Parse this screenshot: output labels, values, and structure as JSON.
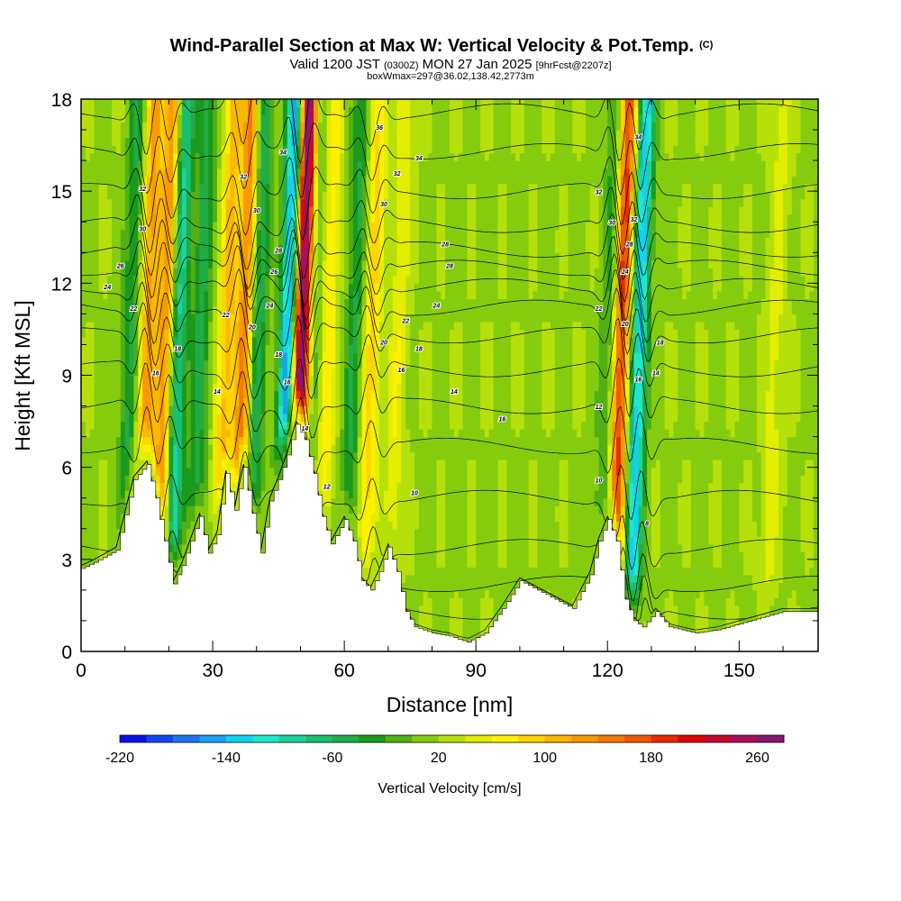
{
  "header": {
    "title": "Wind-Parallel Section at Max W: Vertical Velocity & Pot.Temp.",
    "title_mark": "(C)",
    "valid_prefix": "Valid 1200 JST",
    "valid_utc": "(0300Z)",
    "valid_date": "MON 27 Jan 2025",
    "forecast": "[9hrFcst@2207z]",
    "box_info": "boxWmax=297@36.02,138.42,2773m"
  },
  "chart_data": {
    "type": "heatmap",
    "title": "Wind-Parallel Section at Max W: Vertical Velocity & Pot.Temp.",
    "xlabel": "Distance [nm]",
    "ylabel": "Height [Kft MSL]",
    "xlim": [
      0,
      168
    ],
    "ylim": [
      0,
      18
    ],
    "x_ticks": [
      0,
      30,
      60,
      90,
      120,
      150
    ],
    "y_ticks": [
      0,
      3,
      6,
      9,
      12,
      15,
      18
    ],
    "grid": false,
    "colorbar": {
      "label": "Vertical Velocity [cm/s]",
      "min": -220,
      "max": 280,
      "step": 20,
      "tick_values": [
        -220,
        -140,
        -60,
        20,
        100,
        180,
        260
      ],
      "colors": [
        "#0a10e6",
        "#1746f0",
        "#1f74f2",
        "#18a2f5",
        "#12d2ee",
        "#1ee8c8",
        "#1cd39c",
        "#18bf6e",
        "#22ac45",
        "#1a9a1c",
        "#52b014",
        "#85cc0e",
        "#b6e00a",
        "#e2ed00",
        "#fff000",
        "#ffd400",
        "#fab800",
        "#f89a00",
        "#f57a00",
        "#f05800",
        "#ea2a00",
        "#e60000",
        "#c80a2a",
        "#a8105a",
        "#861870"
      ]
    },
    "wind_series": {
      "name": "Vertical Velocity",
      "units": "cm/s",
      "max_value": 297,
      "updrafts": [
        {
          "x": 15,
          "w": 110
        },
        {
          "x": 19,
          "w": 120
        },
        {
          "x": 33,
          "w": 90
        },
        {
          "x": 37,
          "w": 130
        },
        {
          "x": 50,
          "w": 280
        },
        {
          "x": 56,
          "w": 60
        },
        {
          "x": 66,
          "w": 70
        },
        {
          "x": 72,
          "w": 40
        },
        {
          "x": 123,
          "w": 170
        },
        {
          "x": 158,
          "w": 30
        }
      ],
      "downdrafts": [
        {
          "x": 11,
          "w": -60
        },
        {
          "x": 22,
          "w": -110
        },
        {
          "x": 27,
          "w": -70
        },
        {
          "x": 40,
          "w": -80
        },
        {
          "x": 47,
          "w": -180
        },
        {
          "x": 53,
          "w": -40
        },
        {
          "x": 62,
          "w": -60
        },
        {
          "x": 127,
          "w": -150
        },
        {
          "x": 120,
          "w": -50
        }
      ]
    },
    "terrain_series": {
      "name": "Terrain",
      "units": "Kft",
      "x": [
        0,
        3,
        8,
        12,
        15,
        17,
        19,
        21,
        23,
        25,
        27,
        29,
        31,
        33,
        35,
        37,
        39,
        41,
        43,
        45,
        47,
        49,
        51,
        53,
        55,
        57,
        60,
        62,
        64,
        66,
        68,
        70,
        72,
        74,
        76,
        80,
        84,
        88,
        92,
        96,
        100,
        104,
        108,
        112,
        116,
        118,
        120,
        122,
        124,
        126,
        128,
        131,
        134,
        137,
        140,
        145,
        150,
        155,
        160,
        168
      ],
      "y": [
        2.7,
        2.9,
        3.3,
        5.6,
        6.1,
        5.0,
        3.6,
        2.2,
        2.8,
        3.6,
        4.4,
        3.2,
        3.8,
        5.8,
        4.6,
        6.0,
        4.5,
        3.2,
        4.9,
        5.6,
        6.4,
        7.4,
        6.9,
        5.8,
        4.4,
        3.5,
        4.3,
        3.6,
        2.3,
        2.0,
        2.6,
        3.4,
        2.6,
        1.3,
        0.8,
        0.6,
        0.5,
        0.3,
        0.6,
        1.4,
        2.3,
        2.0,
        1.7,
        1.4,
        2.5,
        3.6,
        4.3,
        3.6,
        1.7,
        1.0,
        0.8,
        1.3,
        0.8,
        0.7,
        0.6,
        0.7,
        0.9,
        1.1,
        1.3,
        1.3
      ]
    },
    "theta_series": {
      "name": "Pot.Temp.",
      "units": "C",
      "base_levels": [
        {
          "t": 4,
          "y": 0.5
        },
        {
          "t": 6,
          "y": 1.3
        },
        {
          "t": 8,
          "y": 2.2
        },
        {
          "t": 10,
          "y": 3.4
        },
        {
          "t": 12,
          "y": 5.0
        },
        {
          "t": 14,
          "y": 6.7
        },
        {
          "t": 16,
          "y": 8.0
        },
        {
          "t": 18,
          "y": 9.2
        },
        {
          "t": 20,
          "y": 10.3
        },
        {
          "t": 22,
          "y": 11.2
        },
        {
          "t": 24,
          "y": 11.9
        },
        {
          "t": 26,
          "y": 12.5
        },
        {
          "t": 28,
          "y": 13.1
        },
        {
          "t": 30,
          "y": 13.9
        },
        {
          "t": 32,
          "y": 15.0
        },
        {
          "t": 34,
          "y": 16.3
        },
        {
          "t": 36,
          "y": 17.6
        }
      ],
      "labels": [
        {
          "x": 96,
          "y": 7.5,
          "text": "16"
        },
        {
          "x": 85,
          "y": 8.4,
          "text": "14"
        },
        {
          "x": 81,
          "y": 11.2,
          "text": "24"
        },
        {
          "x": 84,
          "y": 12.5,
          "text": "28"
        },
        {
          "x": 83,
          "y": 13.2,
          "text": "28"
        },
        {
          "x": 77,
          "y": 16.0,
          "text": "34"
        },
        {
          "x": 68,
          "y": 17.0,
          "text": "36"
        },
        {
          "x": 72,
          "y": 15.5,
          "text": "32"
        },
        {
          "x": 69,
          "y": 14.5,
          "text": "30"
        },
        {
          "x": 74,
          "y": 10.7,
          "text": "22"
        },
        {
          "x": 69,
          "y": 10.0,
          "text": "20"
        },
        {
          "x": 77,
          "y": 9.8,
          "text": "18"
        },
        {
          "x": 73,
          "y": 9.1,
          "text": "16"
        },
        {
          "x": 76,
          "y": 5.1,
          "text": "10"
        },
        {
          "x": 56,
          "y": 5.3,
          "text": "12"
        },
        {
          "x": 51,
          "y": 7.2,
          "text": "14"
        },
        {
          "x": 47,
          "y": 8.7,
          "text": "16"
        },
        {
          "x": 45,
          "y": 9.6,
          "text": "18"
        },
        {
          "x": 39,
          "y": 10.5,
          "text": "20"
        },
        {
          "x": 43,
          "y": 11.2,
          "text": "24"
        },
        {
          "x": 44,
          "y": 12.3,
          "text": "26"
        },
        {
          "x": 45,
          "y": 13.0,
          "text": "28"
        },
        {
          "x": 40,
          "y": 14.3,
          "text": "30"
        },
        {
          "x": 37,
          "y": 15.4,
          "text": "32"
        },
        {
          "x": 46,
          "y": 16.2,
          "text": "34"
        },
        {
          "x": 33,
          "y": 10.9,
          "text": "22"
        },
        {
          "x": 31,
          "y": 8.4,
          "text": "14"
        },
        {
          "x": 22,
          "y": 9.8,
          "text": "18"
        },
        {
          "x": 17,
          "y": 9.0,
          "text": "16"
        },
        {
          "x": 12,
          "y": 11.1,
          "text": "22"
        },
        {
          "x": 6,
          "y": 11.8,
          "text": "24"
        },
        {
          "x": 9,
          "y": 12.5,
          "text": "26"
        },
        {
          "x": 14,
          "y": 13.7,
          "text": "30"
        },
        {
          "x": 14,
          "y": 15.0,
          "text": "32"
        },
        {
          "x": 118,
          "y": 7.9,
          "text": "12"
        },
        {
          "x": 118,
          "y": 5.5,
          "text": "10"
        },
        {
          "x": 129,
          "y": 4.1,
          "text": "8"
        },
        {
          "x": 131,
          "y": 9.0,
          "text": "14"
        },
        {
          "x": 127,
          "y": 8.8,
          "text": "16"
        },
        {
          "x": 132,
          "y": 10.0,
          "text": "18"
        },
        {
          "x": 124,
          "y": 10.6,
          "text": "20"
        },
        {
          "x": 118,
          "y": 11.1,
          "text": "22"
        },
        {
          "x": 124,
          "y": 12.3,
          "text": "24"
        },
        {
          "x": 125,
          "y": 13.2,
          "text": "28"
        },
        {
          "x": 121,
          "y": 13.9,
          "text": "30"
        },
        {
          "x": 126,
          "y": 14.0,
          "text": "32"
        },
        {
          "x": 118,
          "y": 14.9,
          "text": "32"
        },
        {
          "x": 127,
          "y": 16.7,
          "text": "34"
        }
      ]
    }
  }
}
